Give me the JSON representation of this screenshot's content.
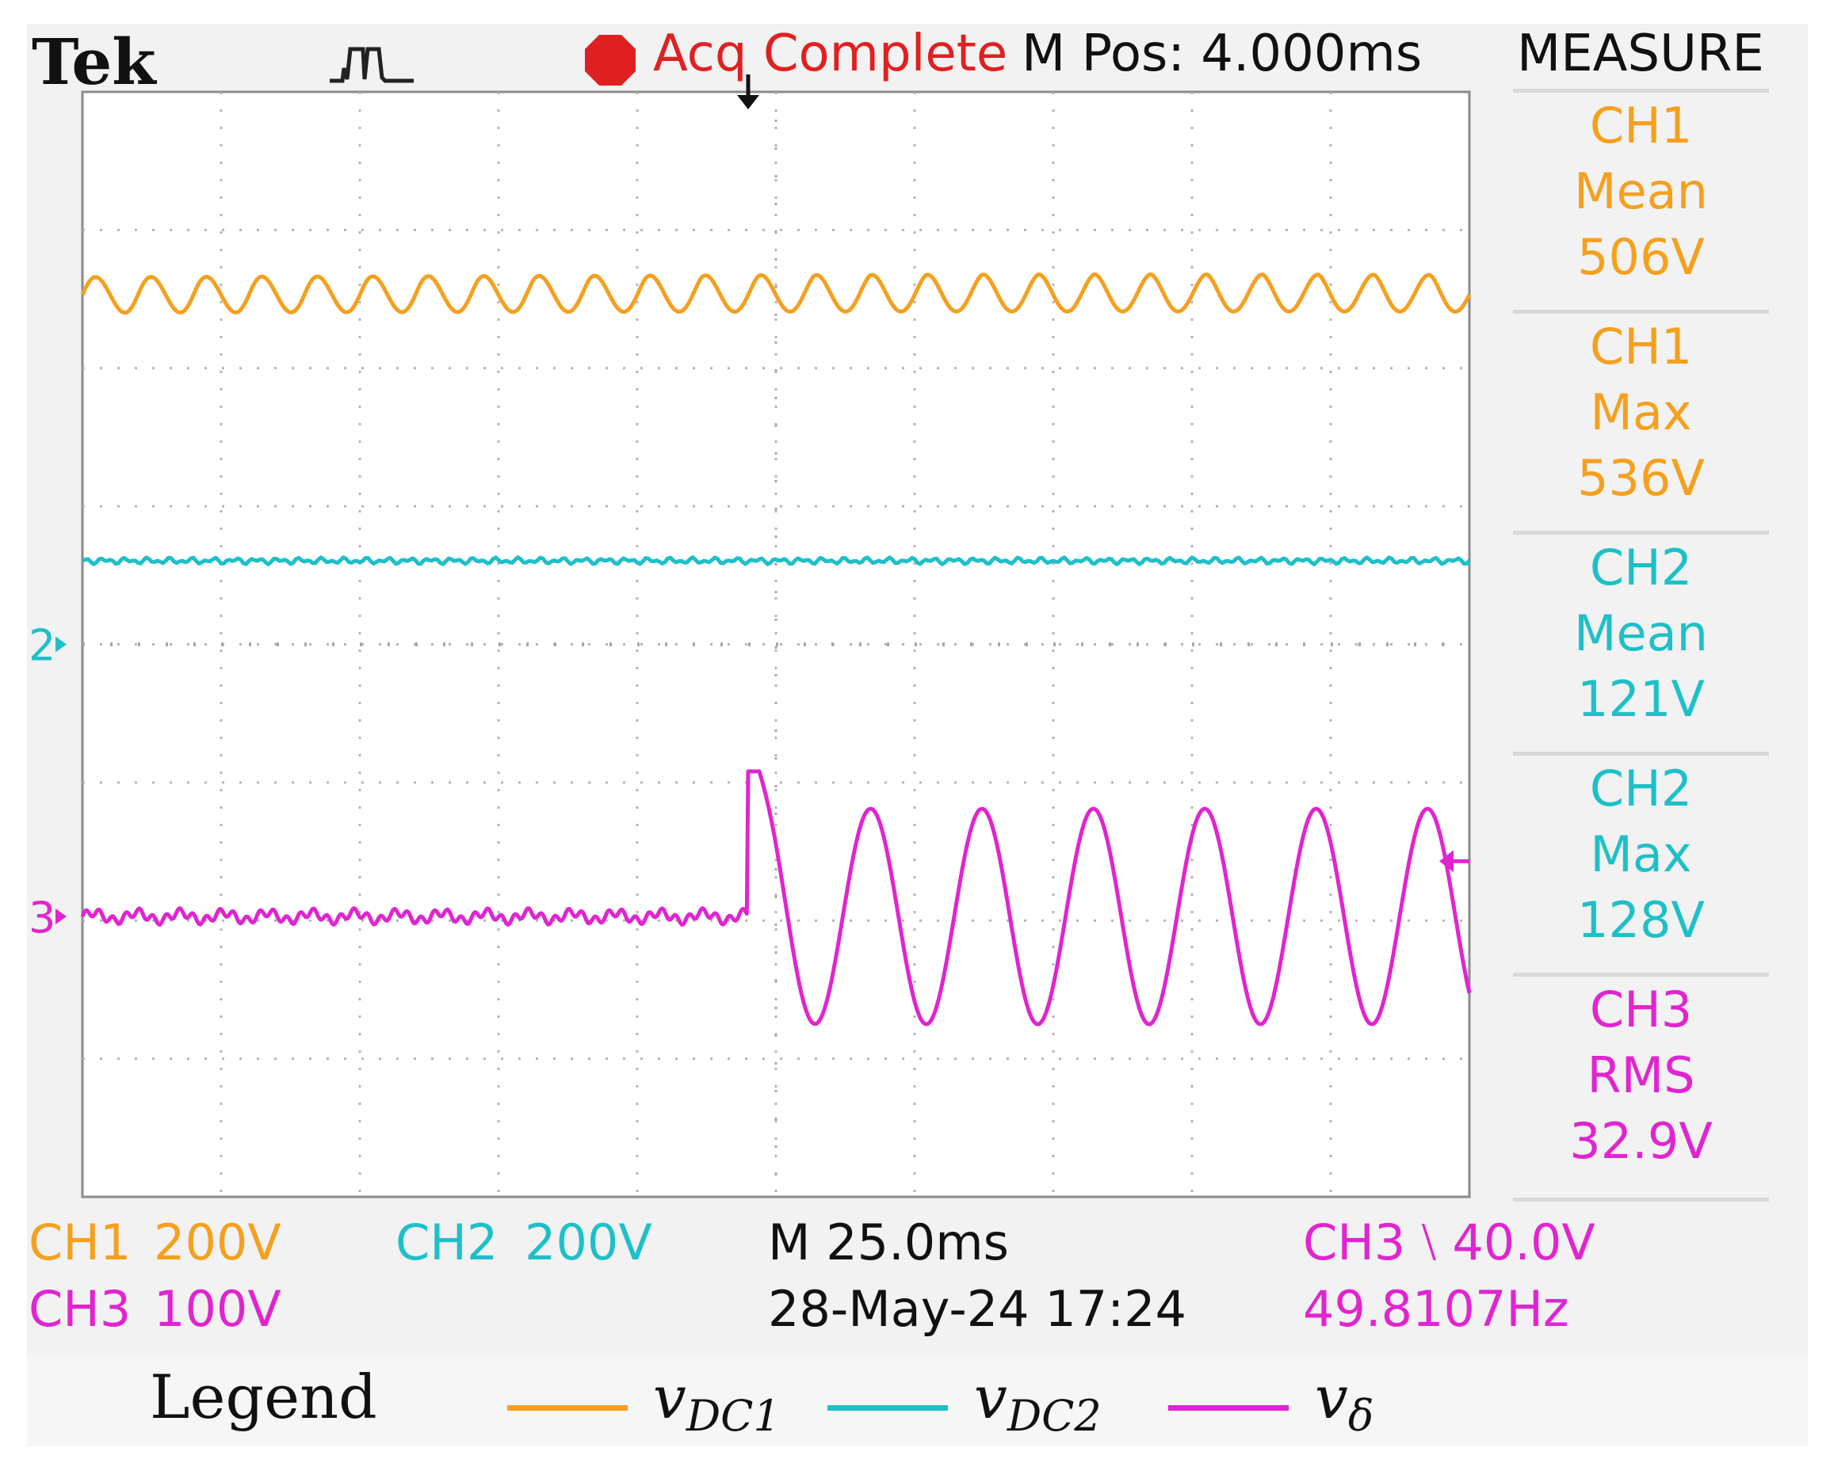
{
  "header": {
    "brand": "Tek",
    "status_icon": "acquisition-stopped-icon",
    "status": "Acq Complete",
    "mpos": "M Pos: 4.000ms",
    "measure_title": "MEASURE"
  },
  "colors": {
    "ch1": "#f5a01e",
    "ch2": "#1ec0c8",
    "ch3": "#e025d0",
    "status_red": "#e02020"
  },
  "measurements": [
    {
      "channel": "CH1",
      "type": "Mean",
      "value": "506V",
      "color": "#f5a01e"
    },
    {
      "channel": "CH1",
      "type": "Max",
      "value": "536V",
      "color": "#f5a01e"
    },
    {
      "channel": "CH2",
      "type": "Mean",
      "value": "121V",
      "color": "#1ec0c8"
    },
    {
      "channel": "CH2",
      "type": "Max",
      "value": "128V",
      "color": "#1ec0c8"
    },
    {
      "channel": "CH3",
      "type": "RMS",
      "value": "32.9V",
      "color": "#e025d0"
    }
  ],
  "footer": {
    "ch1_name": "CH1",
    "ch1_scale": "200V",
    "ch2_name": "CH2",
    "ch2_scale": "200V",
    "ch3_name": "CH3",
    "ch3_scale": "100V",
    "timebase": "M 25.0ms",
    "datetime": "28-May-24 17:24",
    "trigger": "CH3 ⧵ 40.0V",
    "frequency": "49.8107Hz"
  },
  "markers": {
    "ch1_ch2_ground": "2",
    "ch3_ground": "3"
  },
  "legend": {
    "label": "Legend",
    "entries": [
      "v_DC1",
      "v_DC2",
      "v_δ"
    ]
  },
  "chart_data": {
    "type": "line",
    "x_unit": "ms",
    "x_per_div": 25.0,
    "x_range": [
      0,
      250
    ],
    "grid": true,
    "trigger_time_ms": 120,
    "series": [
      {
        "name": "v_DC1",
        "channel": "CH1",
        "volts_per_div": 200,
        "mean": 506,
        "max": 536,
        "ripple_cycles": 25,
        "ripple_pp_v": 60
      },
      {
        "name": "v_DC2",
        "channel": "CH2",
        "volts_per_div": 200,
        "mean": 121,
        "max": 128,
        "ripple_pp_v": 10
      },
      {
        "name": "v_δ",
        "channel": "CH3",
        "volts_per_div": 100,
        "rms": 32.9,
        "pre_trigger_level_v": 0,
        "step_peak_v": 105,
        "amplitude_v": 78,
        "frequency_hz": 49.8107
      }
    ]
  }
}
